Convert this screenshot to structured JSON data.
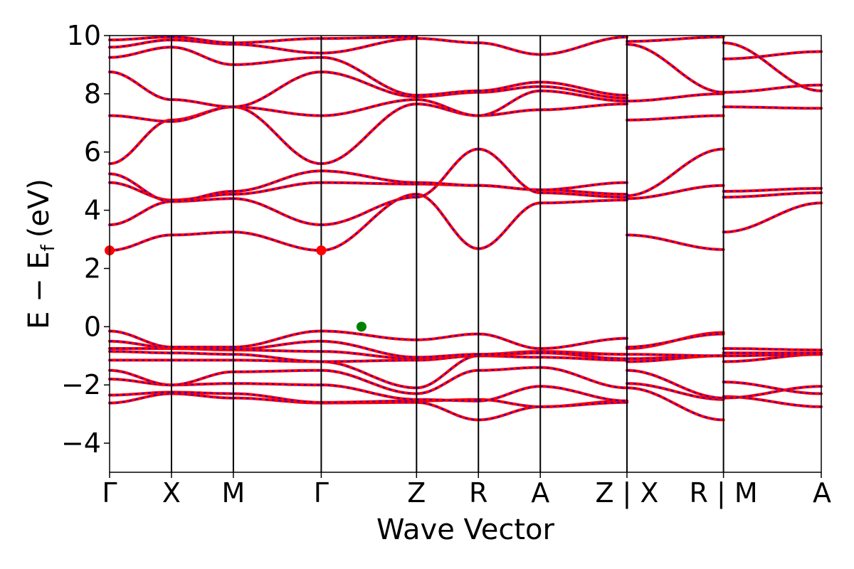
{
  "chart_data": {
    "type": "line",
    "title": "",
    "xlabel": "Wave Vector",
    "ylabel": "E − E_f (eV)",
    "ylabel_parts": {
      "main": "E − E",
      "sub": "f",
      "unit": "(eV)"
    },
    "ylim": [
      -5,
      10
    ],
    "yticks": [
      -4,
      -2,
      0,
      2,
      4,
      6,
      8,
      10
    ],
    "ytick_labels": [
      "−4",
      "−2",
      "0",
      "2",
      "4",
      "6",
      "8",
      "10"
    ],
    "xlim": [
      0,
      11.5
    ],
    "kpoints": [
      {
        "label": "Γ",
        "x": 0
      },
      {
        "label": "X",
        "x": 1.0
      },
      {
        "label": "M",
        "x": 2.0
      },
      {
        "label": "Γ",
        "x": 3.42
      },
      {
        "label": "Z",
        "x": 4.96
      },
      {
        "label": "R",
        "x": 5.96
      },
      {
        "label": "A",
        "x": 6.96
      },
      {
        "label": "Z | X",
        "x": 8.36
      },
      {
        "label": "R | M",
        "x": 9.92
      },
      {
        "label": "A",
        "x": 11.5
      }
    ],
    "colors": {
      "bands": "#ff0000",
      "bands_overlay": "#0000ff",
      "cbm": "#ff0000",
      "vbm": "#008000"
    },
    "markers": [
      {
        "name": "CBM",
        "x": 0,
        "y": 2.62,
        "color": "#ff0000"
      },
      {
        "name": "CBM",
        "x": 3.42,
        "y": 2.62,
        "color": "#ff0000"
      },
      {
        "name": "VBM",
        "x": 4.07,
        "y": 0.0,
        "color": "#008000"
      }
    ],
    "segments": [
      {
        "x0": 0,
        "x1": 1.0,
        "bands": [
          [
            -2.62,
            -2.3
          ],
          [
            -2.35,
            -2.25
          ],
          [
            -1.8,
            -2.0
          ],
          [
            -1.5,
            -2.0
          ],
          [
            -1.15,
            -1.15
          ],
          [
            -0.85,
            -0.9
          ],
          [
            -0.75,
            -0.75
          ],
          [
            -0.5,
            -0.72
          ],
          [
            -0.15,
            -0.7
          ],
          [
            2.62,
            3.15
          ],
          [
            3.5,
            4.3
          ],
          [
            4.95,
            4.35
          ],
          [
            5.25,
            4.3
          ],
          [
            5.6,
            7.1
          ],
          [
            7.25,
            7.05
          ],
          [
            8.75,
            7.8
          ],
          [
            9.25,
            9.6
          ],
          [
            9.6,
            9.85
          ],
          [
            9.85,
            9.95
          ]
        ]
      },
      {
        "x0": 1.0,
        "x1": 2.0,
        "bands": [
          [
            -2.3,
            -2.45
          ],
          [
            -2.25,
            -2.3
          ],
          [
            -2.0,
            -1.95
          ],
          [
            -2.0,
            -1.55
          ],
          [
            -1.15,
            -1.15
          ],
          [
            -0.9,
            -0.95
          ],
          [
            -0.75,
            -0.8
          ],
          [
            -0.72,
            -0.78
          ],
          [
            -0.7,
            -0.7
          ],
          [
            3.15,
            3.25
          ],
          [
            4.3,
            4.4
          ],
          [
            4.35,
            4.55
          ],
          [
            4.3,
            4.65
          ],
          [
            7.1,
            7.55
          ],
          [
            7.05,
            7.55
          ],
          [
            7.8,
            7.55
          ],
          [
            9.6,
            9.0
          ],
          [
            9.85,
            9.7
          ],
          [
            9.95,
            9.75
          ]
        ]
      },
      {
        "x0": 2.0,
        "x1": 3.42,
        "bands": [
          [
            -2.45,
            -2.62
          ],
          [
            -2.3,
            -2.6
          ],
          [
            -1.95,
            -2.0
          ],
          [
            -1.55,
            -1.5
          ],
          [
            -1.15,
            -1.2
          ],
          [
            -0.95,
            -1.2
          ],
          [
            -0.8,
            -0.85
          ],
          [
            -0.78,
            -0.5
          ],
          [
            -0.7,
            -0.15
          ],
          [
            3.25,
            2.62
          ],
          [
            4.4,
            3.5
          ],
          [
            4.55,
            4.95
          ],
          [
            4.65,
            5.35
          ],
          [
            7.55,
            5.6
          ],
          [
            7.55,
            7.25
          ],
          [
            7.55,
            8.75
          ],
          [
            9.0,
            9.25
          ],
          [
            9.7,
            9.4
          ],
          [
            9.75,
            9.9
          ]
        ]
      },
      {
        "x0": 3.42,
        "x1": 4.96,
        "bands": [
          [
            -2.62,
            -2.6
          ],
          [
            -2.6,
            -2.55
          ],
          [
            -2.0,
            -2.5
          ],
          [
            -1.5,
            -2.3
          ],
          [
            -1.2,
            -2.1
          ],
          [
            -1.2,
            -1.15
          ],
          [
            -0.85,
            -1.1
          ],
          [
            -0.5,
            -1.05
          ],
          [
            -0.15,
            -0.45
          ],
          [
            2.62,
            4.55
          ],
          [
            3.5,
            4.45
          ],
          [
            4.95,
            4.9
          ],
          [
            5.35,
            4.95
          ],
          [
            5.6,
            7.65
          ],
          [
            7.25,
            7.8
          ],
          [
            8.75,
            7.9
          ],
          [
            9.25,
            7.95
          ],
          [
            9.4,
            9.9
          ],
          [
            9.9,
            9.95
          ]
        ]
      },
      {
        "x0": 4.96,
        "x1": 5.96,
        "bands": [
          [
            -2.6,
            -3.2
          ],
          [
            -2.55,
            -2.5
          ],
          [
            -2.5,
            -2.55
          ],
          [
            -2.3,
            -1.5
          ],
          [
            -2.1,
            -1.0
          ],
          [
            -1.15,
            -1.0
          ],
          [
            -1.1,
            -0.95
          ],
          [
            -1.05,
            -0.95
          ],
          [
            -0.45,
            -0.25
          ],
          [
            4.55,
            2.68
          ],
          [
            4.45,
            6.1
          ],
          [
            4.9,
            4.85
          ],
          [
            4.95,
            4.85
          ],
          [
            7.65,
            7.25
          ],
          [
            7.8,
            7.25
          ],
          [
            7.9,
            8.05
          ],
          [
            7.95,
            8.1
          ],
          [
            9.9,
            9.75
          ]
        ]
      },
      {
        "x0": 5.96,
        "x1": 6.96,
        "bands": [
          [
            -3.2,
            -2.75
          ],
          [
            -2.5,
            -2.75
          ],
          [
            -2.55,
            -2.05
          ],
          [
            -1.5,
            -1.4
          ],
          [
            -1.0,
            -1.05
          ],
          [
            -1.0,
            -0.9
          ],
          [
            -0.95,
            -0.85
          ],
          [
            -0.95,
            -0.9
          ],
          [
            -0.25,
            -0.75
          ],
          [
            2.68,
            4.25
          ],
          [
            6.1,
            4.6
          ],
          [
            4.85,
            4.7
          ],
          [
            4.85,
            4.7
          ],
          [
            7.25,
            7.45
          ],
          [
            7.25,
            8.1
          ],
          [
            8.05,
            8.25
          ],
          [
            8.1,
            8.4
          ],
          [
            9.75,
            9.35
          ]
        ]
      },
      {
        "x0": 6.96,
        "x1": 8.36,
        "bands": [
          [
            -2.75,
            -2.55
          ],
          [
            -2.75,
            -2.6
          ],
          [
            -2.05,
            -2.55
          ],
          [
            -1.4,
            -2.1
          ],
          [
            -1.05,
            -1.15
          ],
          [
            -0.9,
            -1.1
          ],
          [
            -0.85,
            -0.95
          ],
          [
            -0.9,
            -0.95
          ],
          [
            -0.75,
            -0.4
          ],
          [
            4.25,
            4.35
          ],
          [
            4.6,
            4.45
          ],
          [
            4.7,
            4.55
          ],
          [
            4.7,
            4.95
          ],
          [
            7.45,
            7.65
          ],
          [
            8.1,
            7.75
          ],
          [
            8.25,
            7.85
          ],
          [
            8.4,
            7.95
          ],
          [
            9.35,
            9.95
          ]
        ]
      },
      {
        "x0": 8.36,
        "x1": 9.92,
        "bands": [
          [
            -2.1,
            -3.2
          ],
          [
            -1.95,
            -2.5
          ],
          [
            -1.5,
            -2.45
          ],
          [
            -1.2,
            -1.0
          ],
          [
            -1.1,
            -1.0
          ],
          [
            -0.95,
            -1.0
          ],
          [
            -0.75,
            -0.2
          ],
          [
            -0.7,
            -0.25
          ],
          [
            3.15,
            2.65
          ],
          [
            4.4,
            4.85
          ],
          [
            4.5,
            6.1
          ],
          [
            7.1,
            7.25
          ],
          [
            7.75,
            8.0
          ],
          [
            9.7,
            8.05
          ],
          [
            9.8,
            9.95
          ]
        ]
      },
      {
        "x0": 9.92,
        "x1": 11.5,
        "bands": [
          [
            -2.4,
            -2.75
          ],
          [
            -2.45,
            -2.05
          ],
          [
            -1.9,
            -2.3
          ],
          [
            -1.2,
            -0.95
          ],
          [
            -1.0,
            -0.95
          ],
          [
            -0.75,
            -0.8
          ],
          [
            -0.9,
            -0.9
          ],
          [
            3.25,
            4.25
          ],
          [
            4.45,
            4.6
          ],
          [
            4.65,
            4.75
          ],
          [
            7.55,
            7.5
          ],
          [
            8.05,
            8.3
          ],
          [
            9.2,
            9.45
          ],
          [
            9.75,
            8.1
          ]
        ]
      }
    ]
  }
}
